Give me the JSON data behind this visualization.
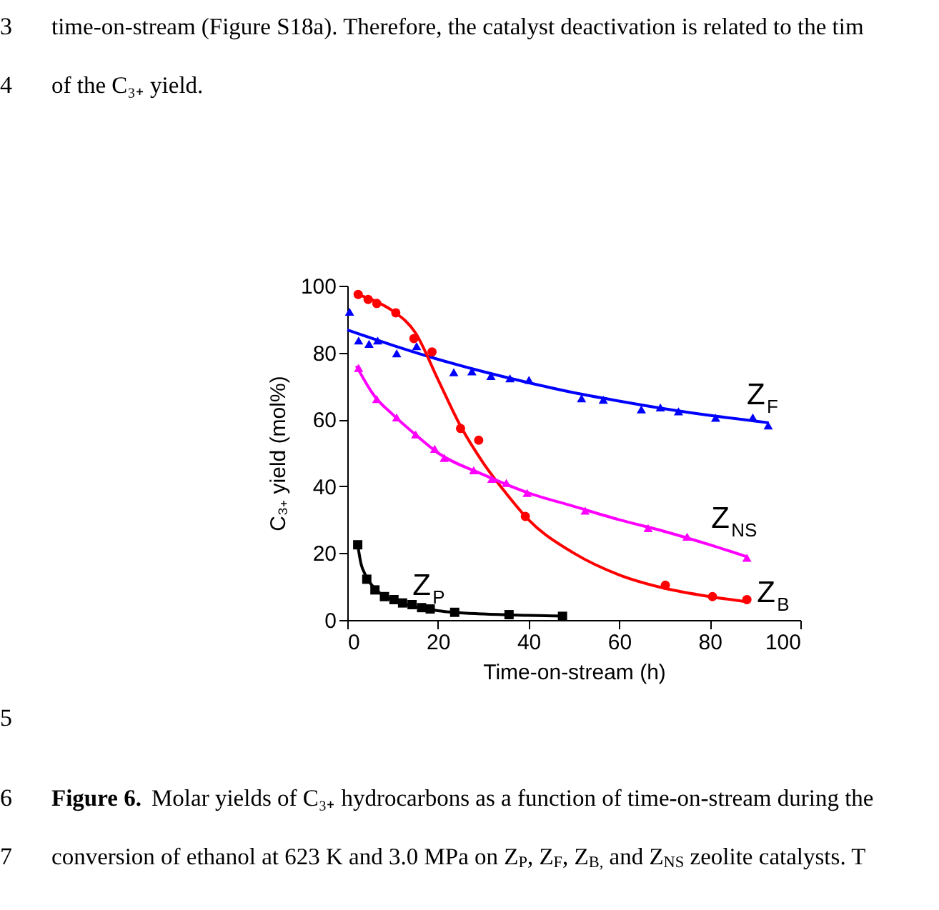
{
  "chart_data": {
    "type": "scatter",
    "xlabel": "Time-on-stream (h)",
    "ylabel": "C₃₊ yield (mol%)",
    "xlim": [
      0,
      100
    ],
    "ylim": [
      0,
      100
    ],
    "xticks": [
      0,
      20,
      40,
      60,
      80,
      100
    ],
    "yticks": [
      0,
      20,
      40,
      60,
      80,
      100
    ],
    "grid": false,
    "series": [
      {
        "name": "Z$_{F}$",
        "type": "scatter",
        "marker": "triangle",
        "color": "#0000ff",
        "x": [
          0.5,
          2.5,
          4.8,
          6.7,
          10.9,
          15.3,
          23.5,
          27.5,
          31.7,
          35.9,
          40.1,
          51.7,
          56.5,
          64.9,
          69.1,
          73.1,
          81.3,
          89.5,
          92.9
        ],
        "values": [
          92.2,
          83.6,
          82.6,
          83.6,
          79.8,
          81.9,
          74.1,
          74.4,
          73.0,
          72.3,
          71.8,
          66.3,
          65.9,
          63.0,
          63.6,
          62.4,
          60.5,
          60.6,
          58.2
        ]
      },
      {
        "type": "line",
        "color": "#0000ff",
        "x": [
          0,
          10,
          20,
          30,
          40,
          50,
          60,
          70,
          80,
          93
        ],
        "values": [
          86.8,
          82.2,
          78.0,
          74.3,
          71.0,
          68.0,
          65.5,
          63.2,
          61.2,
          59.0
        ]
      },
      {
        "name": "Z$_{B}$",
        "type": "scatter",
        "marker": "circle",
        "color": "#ff0000",
        "x": [
          2.4,
          4.6,
          6.5,
          10.7,
          14.7,
          18.7,
          25.0,
          29.0,
          39.3,
          70.2,
          80.6,
          88.2
        ],
        "values": [
          97.4,
          95.9,
          94.7,
          91.9,
          84.2,
          80.2,
          57.3,
          53.8,
          31.0,
          10.4,
          7.0,
          6.1
        ]
      },
      {
        "type": "line",
        "color": "#ff0000",
        "x": [
          2,
          6,
          10,
          15,
          20,
          25,
          30,
          35,
          40,
          50,
          60,
          70,
          80,
          88
        ],
        "values": [
          97.5,
          95.5,
          92.5,
          86.0,
          72.0,
          58.0,
          47.0,
          38.0,
          30.0,
          20.0,
          13.5,
          9.5,
          7.0,
          5.5
        ]
      },
      {
        "name": "Z$_{NS}$",
        "type": "scatter",
        "marker": "triangle",
        "color": "#ff00ff",
        "x": [
          2.5,
          6.5,
          10.9,
          15.1,
          19.3,
          21.4,
          27.9,
          31.9,
          35.1,
          39.7,
          52.5,
          66.4,
          75.0,
          88.2
        ],
        "values": [
          75.4,
          66.1,
          60.6,
          55.5,
          51.2,
          48.5,
          44.8,
          42.2,
          41.0,
          38.0,
          32.7,
          27.5,
          24.9,
          18.6
        ]
      },
      {
        "type": "line",
        "color": "#ff00ff",
        "x": [
          2,
          6,
          10,
          15,
          20,
          30,
          40,
          50,
          60,
          70,
          80,
          88
        ],
        "values": [
          76.0,
          67.0,
          61.5,
          55.5,
          50.0,
          43.5,
          38.0,
          34.0,
          30.0,
          26.5,
          22.5,
          19.0
        ]
      },
      {
        "name": "Z$_{P}$",
        "type": "scatter",
        "marker": "square",
        "color": "#000000",
        "x": [
          2.3,
          4.3,
          6.1,
          8.2,
          10.3,
          12.2,
          14.3,
          16.4,
          18.3,
          23.7,
          35.7,
          47.5
        ],
        "values": [
          22.5,
          12.2,
          9.0,
          7.0,
          6.1,
          5.1,
          4.6,
          3.7,
          3.3,
          2.3,
          1.6,
          1.1
        ]
      },
      {
        "type": "line",
        "color": "#000000",
        "x": [
          2.3,
          3,
          4,
          6,
          8,
          10,
          15,
          20,
          30,
          40,
          47.5
        ],
        "values": [
          22.5,
          17.0,
          13.5,
          9.5,
          7.3,
          6.0,
          4.0,
          2.8,
          1.8,
          1.4,
          1.2
        ]
      }
    ],
    "annotations": [
      "3",
      "time-on-stream (Figure S18a). Therefore, the catalyst deactivation is related to the tim",
      "4",
      "of the C₃₊ yield.",
      "5",
      "6",
      "Figure 6.",
      "Molar yields of C₃₊ hydrocarbons as a function of time-on-stream during the",
      "7",
      "conversion of ethanol at 623 K and 3.0 MPa on Z$_{P}$, Z$_{F}$, Z$_{B,}$ and Z$_{NS}$ zeolite catalysts. T"
    ]
  }
}
